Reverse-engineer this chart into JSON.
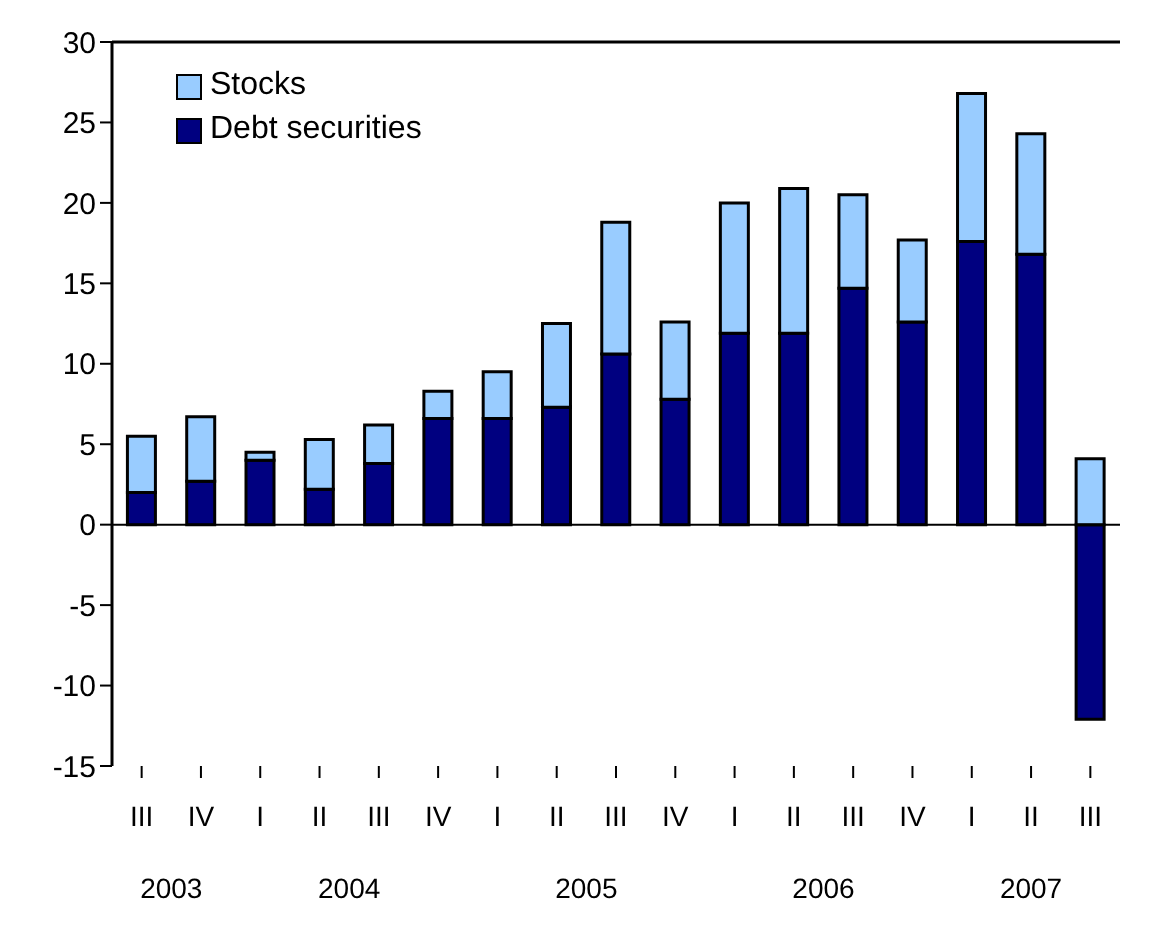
{
  "chart_data": {
    "type": "bar",
    "stacked": true,
    "categories": [
      "III",
      "IV",
      "I",
      "II",
      "III",
      "IV",
      "I",
      "II",
      "III",
      "IV",
      "I",
      "II",
      "III",
      "IV",
      "I",
      "II",
      "III"
    ],
    "series": [
      {
        "name": "Debt securities",
        "color": "#000080",
        "values": [
          2.0,
          2.7,
          4.0,
          2.2,
          3.8,
          6.6,
          6.6,
          7.3,
          10.6,
          7.8,
          11.9,
          11.9,
          14.7,
          12.6,
          17.6,
          16.8,
          -12.1
        ]
      },
      {
        "name": "Stocks",
        "color": "#99ccff",
        "values": [
          3.5,
          4.0,
          0.5,
          3.1,
          2.4,
          1.7,
          2.9,
          5.2,
          8.2,
          4.8,
          8.1,
          9.0,
          5.8,
          5.1,
          9.2,
          7.5,
          4.1
        ]
      }
    ],
    "ylim": [
      -15,
      30
    ],
    "yticks": [
      -15,
      -10,
      -5,
      0,
      5,
      10,
      15,
      20,
      25,
      30
    ],
    "annotations": [
      "2003",
      "2004",
      "2005",
      "2006",
      "2007"
    ],
    "legend": "top left"
  }
}
